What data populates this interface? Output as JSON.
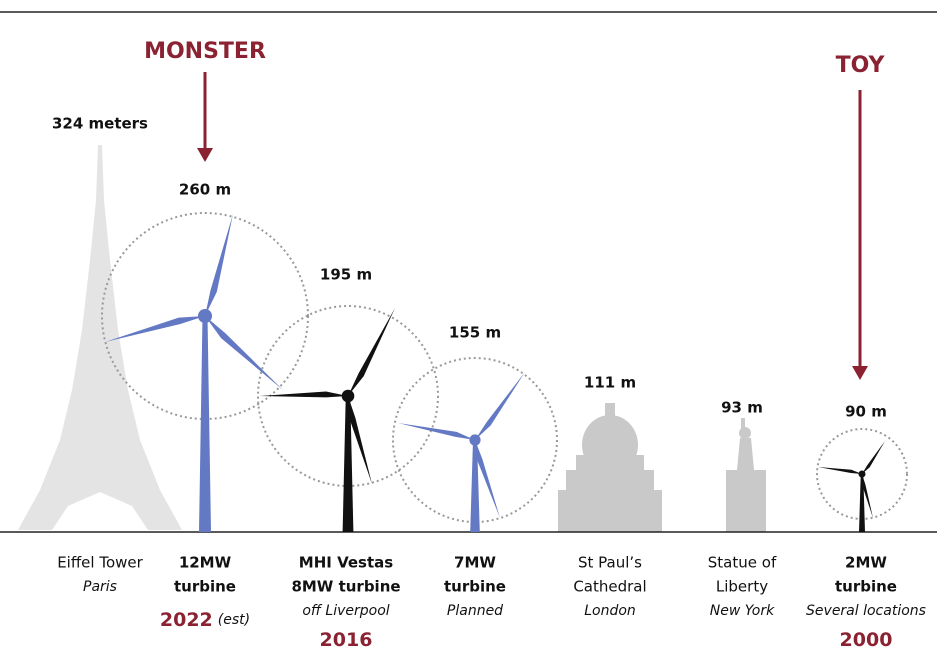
{
  "annotations": {
    "monster": "MONSTER",
    "toy": "TOY"
  },
  "items": [
    {
      "height": "324 meters",
      "name": [
        "Eiffel Tower"
      ],
      "detail": "Paris"
    },
    {
      "height": "260 m",
      "name": [
        "12MW",
        "turbine"
      ],
      "year": "2022",
      "year_note": "(est)"
    },
    {
      "height": "195 m",
      "name": [
        "MHI Vestas",
        "8MW turbine"
      ],
      "detail": "off Liverpool",
      "year": "2016"
    },
    {
      "height": "155 m",
      "name": [
        "7MW",
        "turbine"
      ],
      "detail": "Planned"
    },
    {
      "height": "111 m",
      "name": [
        "St Paul’s",
        "Cathedral"
      ],
      "detail": "London"
    },
    {
      "height": "93 m",
      "name": [
        "Statue of",
        "Liberty"
      ],
      "detail": "New York"
    },
    {
      "height": "90 m",
      "name": [
        "2MW",
        "turbine"
      ],
      "detail": "Several locations",
      "year": "2000"
    }
  ]
}
